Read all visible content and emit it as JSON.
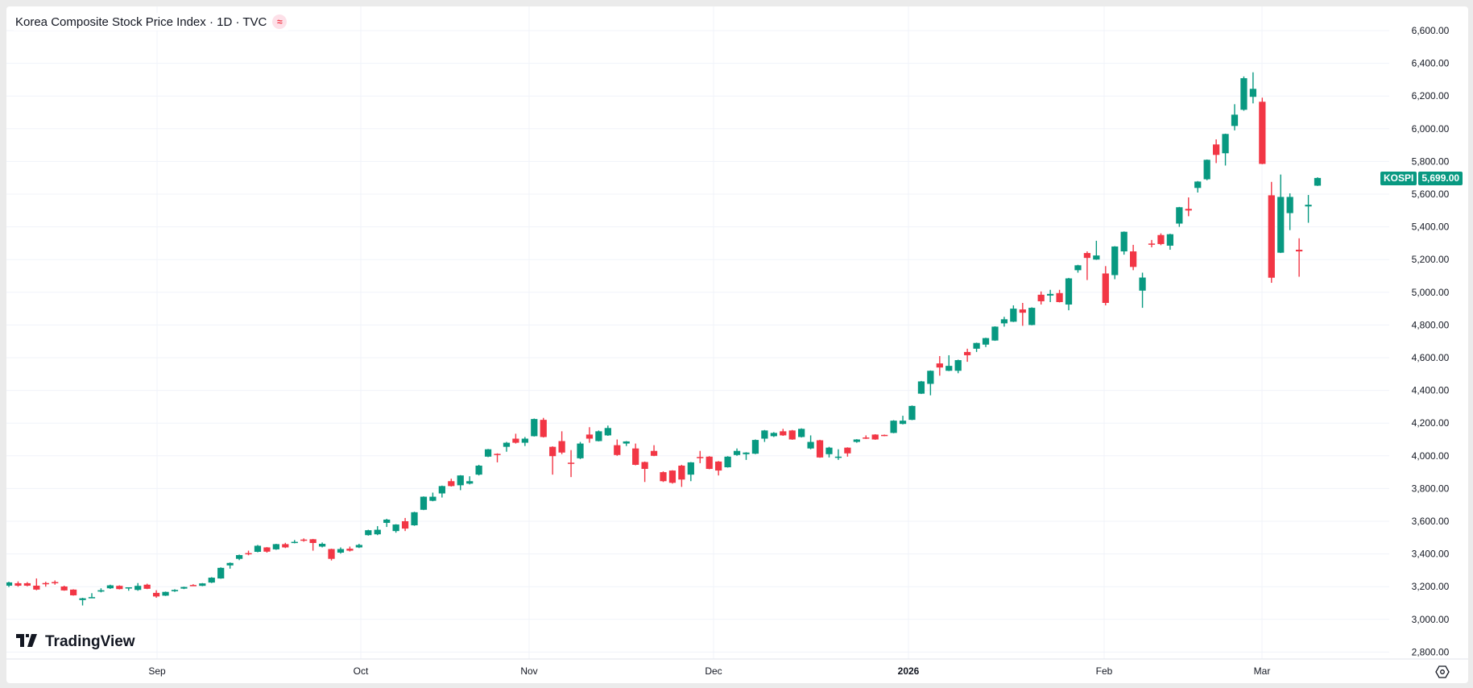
{
  "header": {
    "title": "Korea Composite Stock Price Index · 1D · TVC",
    "badge_icon": "≈"
  },
  "branding": {
    "logo_mark": "17",
    "logo_text": "TradingView"
  },
  "last_price": {
    "symbol": "KOSPI",
    "value": "5,699.00",
    "color": "#089981"
  },
  "colors": {
    "up": "#089981",
    "down": "#F23645",
    "grid": "#f0f3fa"
  },
  "chart_data": {
    "type": "candlestick",
    "title": "Korea Composite Stock Price Index · 1D · TVC",
    "symbol": "KOSPI",
    "interval": "1D",
    "ylim": [
      2800,
      6600
    ],
    "y_ticks": [
      "6,600.00",
      "6,400.00",
      "6,200.00",
      "6,000.00",
      "5,800.00",
      "5,600.00",
      "5,400.00",
      "5,200.00",
      "5,000.00",
      "4,800.00",
      "4,600.00",
      "4,400.00",
      "4,200.00",
      "4,000.00",
      "3,800.00",
      "3,600.00",
      "3,400.00",
      "3,200.00",
      "3,000.00",
      "2,800.00"
    ],
    "x_ticks": [
      {
        "label": "Sep",
        "x": 195
      },
      {
        "label": "Oct",
        "x": 448
      },
      {
        "label": "Nov",
        "x": 657
      },
      {
        "label": "Dec",
        "x": 886
      },
      {
        "label": "2026",
        "x": 1128
      },
      {
        "label": "Feb",
        "x": 1371
      },
      {
        "label": "Mar",
        "x": 1567
      }
    ],
    "grid": true,
    "last_value": 5699.0,
    "ohlc": [
      [
        3206,
        3230,
        3198,
        3226
      ],
      [
        3221,
        3232,
        3200,
        3206
      ],
      [
        3221,
        3228,
        3202,
        3206
      ],
      [
        3206,
        3250,
        3178,
        3182
      ],
      [
        3222,
        3230,
        3200,
        3219
      ],
      [
        3228,
        3238,
        3212,
        3225
      ],
      [
        3201,
        3206,
        3175,
        3177
      ],
      [
        3182,
        3184,
        3145,
        3147
      ],
      [
        3118,
        3132,
        3085,
        3129
      ],
      [
        3133,
        3160,
        3130,
        3136
      ],
      [
        3170,
        3190,
        3165,
        3178
      ],
      [
        3190,
        3212,
        3186,
        3208
      ],
      [
        3205,
        3208,
        3183,
        3185
      ],
      [
        3192,
        3195,
        3175,
        3196
      ],
      [
        3180,
        3222,
        3175,
        3205
      ],
      [
        3212,
        3218,
        3185,
        3187
      ],
      [
        3162,
        3178,
        3132,
        3140
      ],
      [
        3145,
        3170,
        3143,
        3168
      ],
      [
        3172,
        3184,
        3168,
        3180
      ],
      [
        3188,
        3200,
        3185,
        3198
      ],
      [
        3210,
        3215,
        3204,
        3208
      ],
      [
        3205,
        3222,
        3203,
        3220
      ],
      [
        3225,
        3258,
        3222,
        3255
      ],
      [
        3250,
        3318,
        3248,
        3315
      ],
      [
        3330,
        3348,
        3310,
        3345
      ],
      [
        3370,
        3396,
        3362,
        3393
      ],
      [
        3405,
        3420,
        3392,
        3402
      ],
      [
        3413,
        3455,
        3410,
        3450
      ],
      [
        3440,
        3442,
        3408,
        3414
      ],
      [
        3428,
        3462,
        3425,
        3460
      ],
      [
        3460,
        3468,
        3436,
        3440
      ],
      [
        3470,
        3485,
        3465,
        3474
      ],
      [
        3488,
        3495,
        3475,
        3486
      ],
      [
        3490,
        3492,
        3420,
        3467
      ],
      [
        3445,
        3470,
        3440,
        3462
      ],
      [
        3430,
        3432,
        3360,
        3370
      ],
      [
        3408,
        3440,
        3402,
        3430
      ],
      [
        3432,
        3445,
        3415,
        3420
      ],
      [
        3440,
        3462,
        3436,
        3455
      ],
      [
        3515,
        3548,
        3512,
        3545
      ],
      [
        3520,
        3570,
        3515,
        3548
      ],
      [
        3590,
        3615,
        3565,
        3610
      ],
      [
        3540,
        3582,
        3530,
        3580
      ],
      [
        3600,
        3620,
        3540,
        3555
      ],
      [
        3575,
        3658,
        3572,
        3655
      ],
      [
        3670,
        3752,
        3668,
        3750
      ],
      [
        3725,
        3775,
        3722,
        3750
      ],
      [
        3770,
        3818,
        3745,
        3815
      ],
      [
        3845,
        3860,
        3812,
        3815
      ],
      [
        3820,
        3882,
        3790,
        3880
      ],
      [
        3830,
        3875,
        3825,
        3845
      ],
      [
        3885,
        3945,
        3880,
        3940
      ],
      [
        3995,
        4042,
        3992,
        4040
      ],
      [
        4012,
        4015,
        3960,
        4008
      ],
      [
        4055,
        4085,
        4025,
        4080
      ],
      [
        4105,
        4135,
        4075,
        4080
      ],
      [
        4080,
        4115,
        4060,
        4105
      ],
      [
        4120,
        4228,
        4118,
        4225
      ],
      [
        4220,
        4232,
        4112,
        4115
      ],
      [
        4055,
        4058,
        3885,
        3998
      ],
      [
        4090,
        4150,
        4010,
        4020
      ],
      [
        3958,
        4035,
        3870,
        3952
      ],
      [
        3985,
        4085,
        3980,
        4075
      ],
      [
        4130,
        4175,
        4080,
        4105
      ],
      [
        4090,
        4155,
        4088,
        4150
      ],
      [
        4125,
        4185,
        4122,
        4170
      ],
      [
        4065,
        4100,
        4000,
        4005
      ],
      [
        4075,
        4090,
        4060,
        4088
      ],
      [
        4045,
        4075,
        3942,
        3945
      ],
      [
        3962,
        3965,
        3840,
        3920
      ],
      [
        4030,
        4065,
        3998,
        4000
      ],
      [
        3900,
        3905,
        3840,
        3845
      ],
      [
        3910,
        3912,
        3830,
        3835
      ],
      [
        3940,
        3945,
        3810,
        3855
      ],
      [
        3885,
        3962,
        3845,
        3960
      ],
      [
        3993,
        4030,
        3955,
        3990
      ],
      [
        3995,
        3998,
        3918,
        3920
      ],
      [
        3965,
        3968,
        3880,
        3910
      ],
      [
        3930,
        3998,
        3928,
        3995
      ],
      [
        4005,
        4045,
        4000,
        4030
      ],
      [
        4010,
        4022,
        3975,
        4020
      ],
      [
        4013,
        4100,
        4010,
        4097
      ],
      [
        4105,
        4158,
        4085,
        4155
      ],
      [
        4120,
        4145,
        4115,
        4140
      ],
      [
        4150,
        4165,
        4122,
        4125
      ],
      [
        4155,
        4158,
        4098,
        4100
      ],
      [
        4115,
        4168,
        4112,
        4165
      ],
      [
        4045,
        4125,
        4040,
        4085
      ],
      [
        4095,
        4098,
        3988,
        3990
      ],
      [
        4010,
        4055,
        3990,
        4050
      ],
      [
        3992,
        4040,
        3975,
        3995
      ],
      [
        4050,
        4052,
        3995,
        4015
      ],
      [
        4085,
        4102,
        4080,
        4100
      ],
      [
        4112,
        4125,
        4103,
        4105
      ],
      [
        4130,
        4132,
        4098,
        4100
      ],
      [
        4128,
        4130,
        4120,
        4125
      ],
      [
        4140,
        4218,
        4138,
        4215
      ],
      [
        4195,
        4245,
        4192,
        4215
      ],
      [
        4220,
        4308,
        4218,
        4305
      ],
      [
        4380,
        4458,
        4378,
        4455
      ],
      [
        4440,
        4522,
        4370,
        4520
      ],
      [
        4565,
        4610,
        4490,
        4540
      ],
      [
        4520,
        4615,
        4518,
        4550
      ],
      [
        4520,
        4588,
        4505,
        4585
      ],
      [
        4635,
        4655,
        4575,
        4615
      ],
      [
        4655,
        4692,
        4635,
        4690
      ],
      [
        4680,
        4722,
        4665,
        4720
      ],
      [
        4705,
        4792,
        4703,
        4790
      ],
      [
        4810,
        4850,
        4790,
        4835
      ],
      [
        4820,
        4920,
        4818,
        4900
      ],
      [
        4895,
        4935,
        4795,
        4875
      ],
      [
        4800,
        4908,
        4798,
        4905
      ],
      [
        4985,
        5005,
        4925,
        4945
      ],
      [
        4980,
        5015,
        4940,
        4990
      ],
      [
        4995,
        5015,
        4938,
        4940
      ],
      [
        4925,
        5088,
        4890,
        5085
      ],
      [
        5135,
        5168,
        5120,
        5165
      ],
      [
        5240,
        5250,
        5075,
        5210
      ],
      [
        5200,
        5315,
        5198,
        5225
      ],
      [
        5115,
        5160,
        4920,
        4935
      ],
      [
        5105,
        5282,
        5080,
        5280
      ],
      [
        5250,
        5372,
        5230,
        5370
      ],
      [
        5250,
        5290,
        5135,
        5155
      ],
      [
        5010,
        5120,
        4905,
        5090
      ],
      [
        5298,
        5320,
        5275,
        5295
      ],
      [
        5350,
        5360,
        5288,
        5295
      ],
      [
        5285,
        5358,
        5260,
        5355
      ],
      [
        5420,
        5522,
        5400,
        5520
      ],
      [
        5510,
        5580,
        5465,
        5500
      ],
      [
        5638,
        5680,
        5610,
        5677
      ],
      [
        5691,
        5812,
        5685,
        5810
      ],
      [
        5904,
        5935,
        5790,
        5840
      ],
      [
        5850,
        5970,
        5775,
        5968
      ],
      [
        6017,
        6150,
        5990,
        6086
      ],
      [
        6116,
        6320,
        6110,
        6309
      ],
      [
        6195,
        6345,
        6155,
        6244
      ],
      [
        6165,
        6190,
        5783,
        5785
      ],
      [
        5593,
        5675,
        5058,
        5089
      ],
      [
        5242,
        5720,
        5240,
        5583
      ],
      [
        5484,
        5605,
        5380,
        5583
      ],
      [
        5260,
        5330,
        5095,
        5250
      ],
      [
        5525,
        5595,
        5425,
        5535
      ],
      [
        5652,
        5703,
        5650,
        5699
      ]
    ]
  }
}
